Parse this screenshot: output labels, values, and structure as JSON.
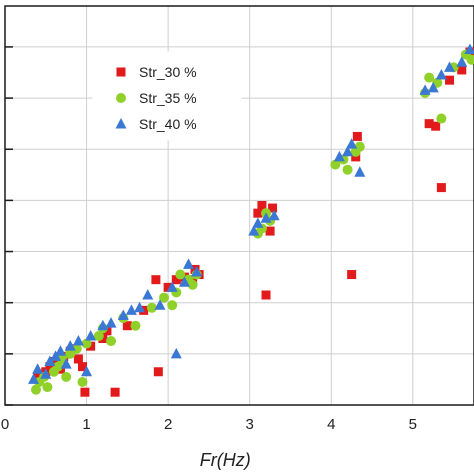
{
  "chart_data": {
    "type": "scatter",
    "xlabel": "Fr(Hz)",
    "ylabel": "",
    "xlim": [
      0,
      5.75
    ],
    "ylim": [
      0,
      7.8
    ],
    "x_ticks": [
      "0",
      "1",
      "2",
      "3",
      "4",
      "5"
    ],
    "y_ticks": [
      0,
      1,
      2,
      3,
      4,
      5,
      6,
      7
    ],
    "grid": true,
    "legend_position": "top-left",
    "colors": {
      "red": "#e31a1c",
      "green": "#8fd129",
      "blue": "#3a78d4"
    },
    "series": [
      {
        "name": "Str_30 %",
        "marker": "square",
        "color": "#e31a1c",
        "x": [
          0.4,
          0.45,
          0.5,
          0.55,
          0.6,
          0.62,
          0.68,
          0.72,
          0.8,
          0.85,
          0.9,
          0.95,
          0.98,
          1.05,
          1.2,
          1.25,
          1.35,
          1.5,
          1.7,
          1.85,
          1.88,
          2.0,
          2.1,
          2.2,
          2.3,
          2.33,
          2.38,
          3.1,
          3.15,
          3.2,
          3.25,
          3.28,
          4.25,
          4.3,
          4.32,
          5.2,
          5.28,
          5.35,
          5.45,
          5.6,
          5.7
        ],
        "y": [
          0.55,
          0.6,
          0.65,
          0.75,
          0.85,
          0.8,
          0.7,
          0.95,
          1.05,
          1.1,
          0.9,
          0.75,
          0.25,
          1.15,
          1.3,
          1.45,
          0.25,
          1.55,
          1.85,
          2.45,
          0.65,
          2.3,
          2.45,
          2.5,
          2.45,
          2.65,
          2.55,
          3.75,
          3.9,
          2.15,
          3.4,
          3.85,
          2.55,
          4.85,
          5.25,
          5.5,
          5.45,
          4.25,
          6.35,
          6.55,
          6.9
        ]
      },
      {
        "name": "Str_35 %",
        "marker": "circle",
        "color": "#8fd129",
        "x": [
          0.38,
          0.42,
          0.48,
          0.52,
          0.6,
          0.65,
          0.7,
          0.75,
          0.8,
          0.88,
          0.95,
          1.0,
          1.15,
          1.2,
          1.3,
          1.45,
          1.6,
          1.8,
          1.95,
          2.05,
          2.1,
          2.15,
          2.25,
          2.3,
          2.35,
          3.1,
          3.15,
          3.2,
          3.25,
          4.05,
          4.15,
          4.2,
          4.3,
          4.35,
          5.15,
          5.2,
          5.3,
          5.35,
          5.5,
          5.65,
          5.72
        ],
        "y": [
          0.3,
          0.45,
          0.55,
          0.35,
          0.65,
          0.75,
          0.9,
          0.55,
          1.0,
          1.1,
          0.45,
          1.2,
          1.35,
          1.5,
          1.25,
          1.7,
          1.55,
          1.9,
          2.1,
          1.95,
          2.2,
          2.55,
          2.45,
          2.35,
          2.55,
          3.35,
          3.45,
          3.75,
          3.6,
          4.7,
          4.8,
          4.6,
          4.95,
          5.05,
          6.1,
          6.4,
          6.3,
          5.6,
          6.6,
          6.85,
          6.75
        ]
      },
      {
        "name": "Str_40 %",
        "marker": "triangle",
        "color": "#3a78d4",
        "x": [
          0.35,
          0.4,
          0.5,
          0.55,
          0.62,
          0.68,
          0.75,
          0.8,
          0.9,
          1.0,
          1.05,
          1.2,
          1.3,
          1.45,
          1.55,
          1.65,
          1.75,
          1.9,
          2.05,
          2.1,
          2.2,
          2.25,
          2.35,
          3.05,
          3.1,
          3.2,
          3.3,
          4.1,
          4.2,
          4.25,
          4.35,
          5.15,
          5.25,
          5.35,
          5.45,
          5.6,
          5.7
        ],
        "y": [
          0.5,
          0.7,
          0.6,
          0.85,
          0.95,
          1.05,
          0.8,
          1.15,
          1.25,
          0.65,
          1.35,
          1.55,
          1.6,
          1.75,
          1.85,
          1.9,
          2.15,
          1.95,
          2.3,
          1.0,
          2.4,
          2.75,
          2.6,
          3.4,
          3.55,
          3.65,
          3.7,
          4.85,
          4.95,
          5.1,
          4.55,
          6.15,
          6.2,
          6.45,
          6.6,
          6.7,
          6.95
        ]
      }
    ]
  }
}
